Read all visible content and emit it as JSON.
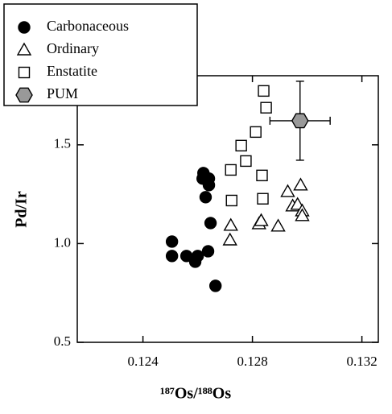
{
  "chart_data": {
    "type": "scatter",
    "xlabel": "¹⁸⁷Os/¹⁸⁸Os",
    "ylabel": "Pd/Ir",
    "xlim": [
      0.1216,
      0.1326
    ],
    "ylim": [
      0.5,
      1.85
    ],
    "xticks": [
      0.124,
      0.128,
      0.132
    ],
    "yticks": [
      0.5,
      {
        "value": 1,
        "label": "1.0"
      },
      1.5
    ],
    "legend": "upper left",
    "series": [
      {
        "name": "Carbonaceous",
        "marker": "filled-circle",
        "color": "#000000",
        "x": [
          0.12506,
          0.12506,
          0.12559,
          0.12591,
          0.126,
          0.12638,
          0.12618,
          0.12621,
          0.12641,
          0.12641,
          0.12629,
          0.12647,
          0.12665
        ],
        "values": [
          1.01,
          0.937,
          0.937,
          0.908,
          0.937,
          0.961,
          1.329,
          1.357,
          1.329,
          1.296,
          1.235,
          1.104,
          0.786
        ]
      },
      {
        "name": "Ordinary",
        "marker": "triangle",
        "color": "#000000",
        "x": [
          0.12721,
          0.12718,
          0.12824,
          0.12832,
          0.12894,
          0.12929,
          0.12947,
          0.12965,
          0.12976,
          0.12982,
          0.12982
        ],
        "values": [
          1.092,
          1.018,
          1.1,
          1.116,
          1.088,
          1.263,
          1.19,
          1.198,
          1.296,
          1.165,
          1.141
        ]
      },
      {
        "name": "Enstatite",
        "marker": "square",
        "color": "#000000",
        "x": [
          0.12721,
          0.12724,
          0.12759,
          0.12776,
          0.12812,
          0.12835,
          0.12838,
          0.12841,
          0.1285
        ],
        "values": [
          1.373,
          1.218,
          1.496,
          1.418,
          1.565,
          1.345,
          1.227,
          1.773,
          1.688
        ]
      },
      {
        "name": "PUM",
        "marker": "hexagon",
        "color": "#999999",
        "x": [
          0.12974
        ],
        "values": [
          1.622
        ],
        "xerr": [
          0.0011
        ],
        "yerr": [
          0.2
        ]
      }
    ]
  }
}
